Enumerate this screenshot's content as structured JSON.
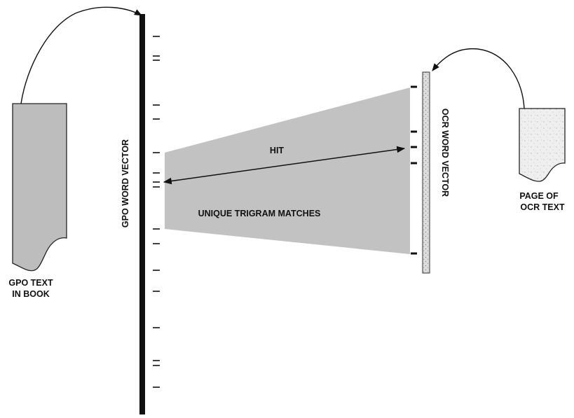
{
  "labels": {
    "gpo_source_line1": "GPO TEXT",
    "gpo_source_line2": "IN BOOK",
    "gpo_vector": "GPO WORD VECTOR",
    "ocr_vector": "OCR WORD VECTOR",
    "ocr_source_line1": "PAGE OF",
    "ocr_source_line2": "OCR TEXT",
    "hit": "HIT",
    "trigram": "UNIQUE TRIGRAM MATCHES"
  },
  "colors": {
    "ink": "#111111",
    "gpo_document_fill": "#bdbdbd",
    "match_region_fill": "#c2c2c2",
    "ocr_vector_fill": "#dcdcdc",
    "ocr_page_fill": "#efefef"
  }
}
